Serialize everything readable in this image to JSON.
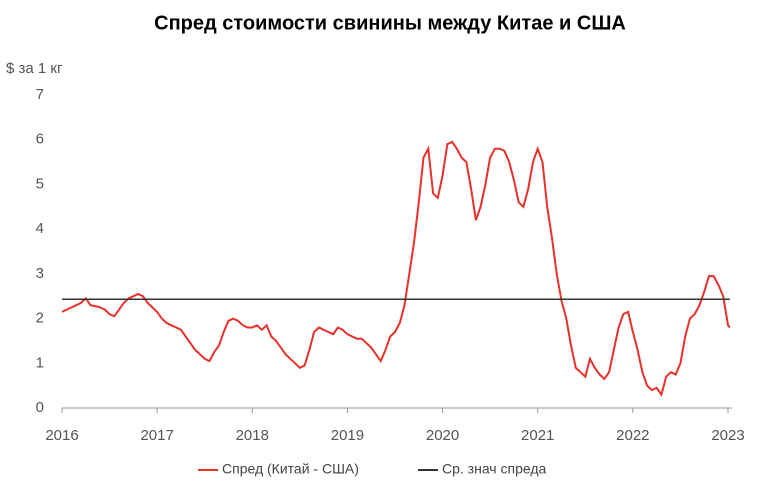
{
  "chart_data": {
    "type": "line",
    "title": "Спред стоимости свинины между Китае и США",
    "y_label": "$ за 1 кг",
    "x": [
      2016.0,
      2016.05,
      2016.1,
      2016.15,
      2016.2,
      2016.25,
      2016.3,
      2016.35,
      2016.4,
      2016.45,
      2016.5,
      2016.55,
      2016.6,
      2016.65,
      2016.7,
      2016.75,
      2016.8,
      2016.85,
      2016.9,
      2016.95,
      2017.0,
      2017.05,
      2017.1,
      2017.15,
      2017.2,
      2017.25,
      2017.3,
      2017.35,
      2017.4,
      2017.45,
      2017.5,
      2017.55,
      2017.6,
      2017.65,
      2017.7,
      2017.75,
      2017.8,
      2017.85,
      2017.9,
      2017.95,
      2018.0,
      2018.05,
      2018.1,
      2018.15,
      2018.2,
      2018.25,
      2018.3,
      2018.35,
      2018.4,
      2018.45,
      2018.5,
      2018.55,
      2018.6,
      2018.65,
      2018.7,
      2018.75,
      2018.8,
      2018.85,
      2018.9,
      2018.95,
      2019.0,
      2019.05,
      2019.1,
      2019.15,
      2019.2,
      2019.25,
      2019.3,
      2019.35,
      2019.4,
      2019.45,
      2019.5,
      2019.55,
      2019.6,
      2019.65,
      2019.7,
      2019.75,
      2019.8,
      2019.85,
      2019.9,
      2019.95,
      2020.0,
      2020.05,
      2020.1,
      2020.15,
      2020.2,
      2020.25,
      2020.3,
      2020.35,
      2020.4,
      2020.45,
      2020.5,
      2020.55,
      2020.6,
      2020.65,
      2020.7,
      2020.75,
      2020.8,
      2020.85,
      2020.9,
      2020.95,
      2021.0,
      2021.05,
      2021.1,
      2021.15,
      2021.2,
      2021.25,
      2021.3,
      2021.35,
      2021.4,
      2021.45,
      2021.5,
      2021.55,
      2021.6,
      2021.65,
      2021.7,
      2021.75,
      2021.8,
      2021.85,
      2021.9,
      2021.95,
      2022.0,
      2022.05,
      2022.1,
      2022.15,
      2022.2,
      2022.25,
      2022.3,
      2022.35,
      2022.4,
      2022.45,
      2022.5,
      2022.55,
      2022.6,
      2022.65,
      2022.7,
      2022.75,
      2022.8,
      2022.85,
      2022.9,
      2022.95,
      2023.0,
      2023.02
    ],
    "series": [
      {
        "name": "Спред  (Китай - США)",
        "color": "#e8312a",
        "values": [
          2.15,
          2.2,
          2.25,
          2.3,
          2.35,
          2.45,
          2.3,
          2.28,
          2.25,
          2.2,
          2.1,
          2.05,
          2.2,
          2.35,
          2.45,
          2.5,
          2.55,
          2.5,
          2.35,
          2.25,
          2.15,
          2.0,
          1.9,
          1.85,
          1.8,
          1.75,
          1.6,
          1.45,
          1.3,
          1.2,
          1.1,
          1.05,
          1.25,
          1.4,
          1.7,
          1.95,
          2.0,
          1.95,
          1.85,
          1.8,
          1.8,
          1.85,
          1.75,
          1.85,
          1.6,
          1.5,
          1.35,
          1.2,
          1.1,
          1.0,
          0.9,
          0.95,
          1.3,
          1.7,
          1.8,
          1.75,
          1.7,
          1.65,
          1.8,
          1.75,
          1.65,
          1.6,
          1.55,
          1.55,
          1.45,
          1.35,
          1.2,
          1.05,
          1.3,
          1.6,
          1.7,
          1.9,
          2.3,
          3.0,
          3.7,
          4.6,
          5.6,
          5.8,
          4.8,
          4.7,
          5.2,
          5.9,
          5.95,
          5.8,
          5.6,
          5.5,
          4.9,
          4.2,
          4.5,
          5.0,
          5.6,
          5.8,
          5.8,
          5.75,
          5.5,
          5.1,
          4.6,
          4.5,
          4.9,
          5.5,
          5.8,
          5.5,
          4.5,
          3.8,
          3.0,
          2.4,
          2.0,
          1.4,
          0.9,
          0.8,
          0.7,
          1.1,
          0.9,
          0.75,
          0.65,
          0.8,
          1.3,
          1.8,
          2.1,
          2.15,
          1.7,
          1.3,
          0.8,
          0.5,
          0.4,
          0.45,
          0.3,
          0.7,
          0.8,
          0.75,
          1.0,
          1.6,
          2.0,
          2.1,
          2.3,
          2.6,
          2.95,
          2.95,
          2.75,
          2.5,
          1.85,
          1.8
        ]
      },
      {
        "name": "Ср. знач спреда",
        "color": "#333333",
        "x": [
          2016.0,
          2023.02
        ],
        "values": [
          2.43,
          2.43
        ]
      }
    ],
    "xlim": [
      2016,
      2023
    ],
    "xticks": [
      2016,
      2017,
      2018,
      2019,
      2020,
      2021,
      2022,
      2023
    ],
    "ylim": [
      0,
      7
    ],
    "yticks": [
      0,
      1,
      2,
      3,
      4,
      5,
      6,
      7
    ],
    "legend": "bottom"
  }
}
